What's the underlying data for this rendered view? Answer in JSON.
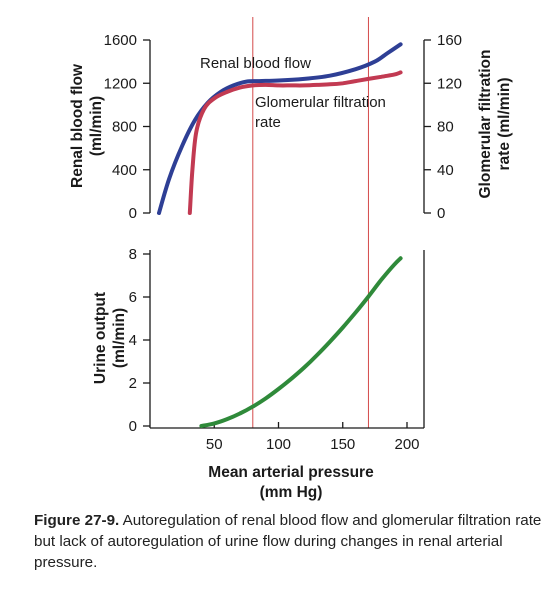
{
  "colors": {
    "rbf": "#2e3f95",
    "gfr": "#c23a52",
    "urine": "#2f8a3a",
    "refline": "#d44a4a",
    "axis": "#1a1a1a"
  },
  "chart_data": [
    {
      "type": "line",
      "x_range": [
        0,
        200
      ],
      "ylim_left": [
        0,
        1600
      ],
      "ylim_right": [
        0,
        160
      ],
      "yticks_left": [
        0,
        400,
        800,
        1200,
        1600
      ],
      "yticks_right": [
        0,
        40,
        80,
        120,
        160
      ],
      "ylabel_left": [
        "Renal blood flow",
        "(ml/min)"
      ],
      "ylabel_right": [
        "Glomerular filtration",
        "rate (ml/min)"
      ],
      "vertical_lines_x": [
        80,
        170
      ],
      "series": [
        {
          "name": "Renal blood flow",
          "axis": "left",
          "x": [
            7,
            15,
            25,
            35,
            45,
            55,
            65,
            75,
            85,
            100,
            120,
            140,
            160,
            175,
            185,
            195
          ],
          "y": [
            0,
            320,
            620,
            860,
            1020,
            1120,
            1180,
            1215,
            1220,
            1225,
            1240,
            1270,
            1330,
            1400,
            1480,
            1560
          ]
        },
        {
          "name": "Glomerular filtration rate",
          "axis": "right",
          "x": [
            31,
            33,
            36,
            42,
            50,
            60,
            70,
            80,
            90,
            100,
            110,
            120,
            130,
            140,
            150,
            160,
            170,
            180,
            190,
            195
          ],
          "y": [
            0,
            40,
            75,
            96,
            106,
            112,
            116,
            118,
            118.5,
            118,
            118,
            118,
            118.5,
            119,
            120,
            122,
            124,
            126,
            128,
            130
          ]
        }
      ],
      "annotations": [
        {
          "text": "Renal blood flow"
        },
        {
          "text": [
            "Glomerular filtration",
            "rate"
          ]
        }
      ]
    },
    {
      "type": "line",
      "x_range": [
        0,
        200
      ],
      "ylim": [
        0,
        8
      ],
      "yticks": [
        0,
        2,
        4,
        6,
        8
      ],
      "xticks": [
        50,
        100,
        150,
        200
      ],
      "ylabel": [
        "Urine output",
        "(ml/min)"
      ],
      "xlabel": [
        "Mean arterial pressure",
        "(mm Hg)"
      ],
      "vertical_lines_x": [
        80,
        170
      ],
      "series": [
        {
          "name": "Urine output",
          "x": [
            40,
            50,
            60,
            70,
            80,
            90,
            100,
            110,
            120,
            130,
            140,
            150,
            160,
            170,
            180,
            190,
            195
          ],
          "y": [
            0,
            0.12,
            0.32,
            0.58,
            0.9,
            1.28,
            1.72,
            2.2,
            2.72,
            3.3,
            3.92,
            4.58,
            5.28,
            6.02,
            6.8,
            7.5,
            7.8
          ]
        }
      ]
    }
  ],
  "caption": {
    "label": "Figure 27-9.",
    "text": " Autoregulation of renal blood flow and glomerular fil­tration rate but lack of autoregulation of urine flow during changes in renal arterial pressure."
  }
}
